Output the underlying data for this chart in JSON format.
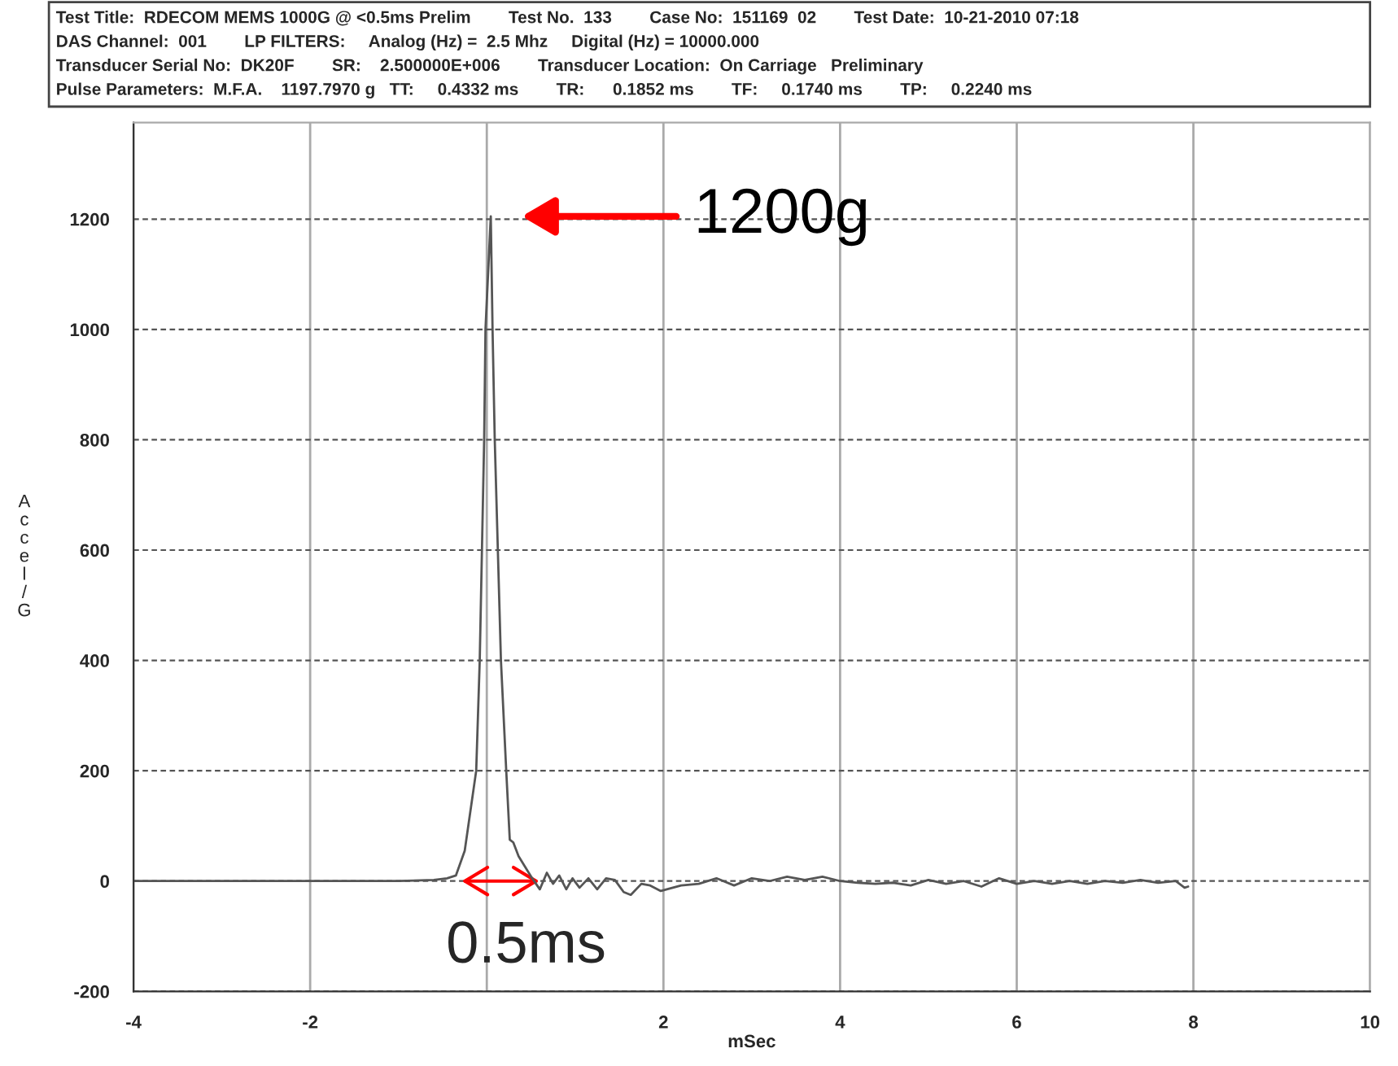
{
  "chart_data": {
    "type": "line",
    "annotations": [
      "Test Title:  RDECOM MEMS 1000G @ <0.5ms Prelim        Test No.  133        Case No:  151169  02        Test Date:  10-21-2010 07:18",
      "DAS Channel:  001        LP FILTERS:     Analog (Hz) =  2.5 Mhz     Digital (Hz) = 10000.000",
      "Transducer Serial No:  DK20F        SR:    2.500000E+006        Transducer Location:  On Carriage   Preliminary",
      "Pulse Parameters:  M.F.A.    1197.7970 g   TT:     0.4332 ms        TR:      0.1852 ms        TF:     0.1740 ms        TP:     0.2240 ms",
      "1200g",
      "0.5ms"
    ],
    "xlabel": "mSec",
    "ylabel": "Accel/G",
    "series": [
      {
        "color": "#555555",
        "x": [
          -4,
          -3,
          -2,
          -1,
          -0.6,
          -0.45,
          -0.35,
          -0.25,
          -0.12,
          -0.08,
          -0.03,
          -0.015,
          0.045,
          0.065,
          0.09,
          0.16,
          0.22,
          0.26,
          0.3,
          0.36,
          0.51,
          0.6,
          0.68,
          0.75,
          0.82,
          0.9,
          0.97,
          1.05,
          1.15,
          1.25,
          1.35,
          1.45,
          1.55,
          1.63,
          1.75,
          1.85,
          1.97,
          2.2,
          2.4,
          2.6,
          2.8,
          3.0,
          3.2,
          3.4,
          3.6,
          3.8,
          4.0,
          4.2,
          4.4,
          4.6,
          4.8,
          5.0,
          5.2,
          5.4,
          5.6,
          5.8,
          6.0,
          6.2,
          6.4,
          6.6,
          6.8,
          7.0,
          7.2,
          7.4,
          7.6,
          7.8,
          7.9,
          7.94
        ],
        "values": [
          0,
          0,
          0,
          0,
          2,
          5,
          10,
          55,
          200,
          400,
          800,
          1000,
          1205,
          1000,
          800,
          400,
          200,
          75,
          70,
          45,
          6,
          -15,
          15,
          -5,
          10,
          -15,
          5,
          -12,
          5,
          -15,
          5,
          2,
          -20,
          -25,
          -5,
          -8,
          -18,
          -8,
          -5,
          5,
          -8,
          5,
          0,
          8,
          2,
          8,
          0,
          -3,
          -5,
          -3,
          -8,
          2,
          -5,
          0,
          -10,
          5,
          -5,
          0,
          -5,
          0,
          -5,
          0,
          -3,
          2,
          -3,
          0,
          -12,
          -10
        ]
      }
    ],
    "xlim": [
      -4,
      10
    ],
    "xticks": [
      -4,
      -2,
      {
        "value": 0,
        "label": null
      },
      2,
      4,
      6,
      8,
      10
    ],
    "ylim": [
      -200,
      1375
    ],
    "yticks": [
      -200,
      0,
      200,
      400,
      600,
      800,
      1000,
      1200
    ],
    "grid": true,
    "marker": "none",
    "line_style": "solid"
  }
}
